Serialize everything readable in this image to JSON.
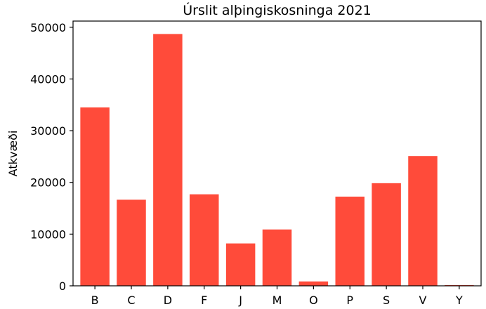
{
  "chart_data": {
    "type": "bar",
    "title": "Úrslit alþingiskosninga 2021",
    "xlabel": "",
    "ylabel": "Atkvæði",
    "categories": [
      "B",
      "C",
      "D",
      "F",
      "J",
      "M",
      "O",
      "P",
      "S",
      "V",
      "Y"
    ],
    "values": [
      34500,
      16650,
      48700,
      17700,
      8200,
      10900,
      850,
      17250,
      19850,
      25100,
      150
    ],
    "ylim": [
      0,
      51200
    ],
    "yticks": [
      0,
      10000,
      20000,
      30000,
      40000,
      50000
    ],
    "bar_color": "#ff4b3a",
    "grid": false,
    "legend": "none"
  }
}
